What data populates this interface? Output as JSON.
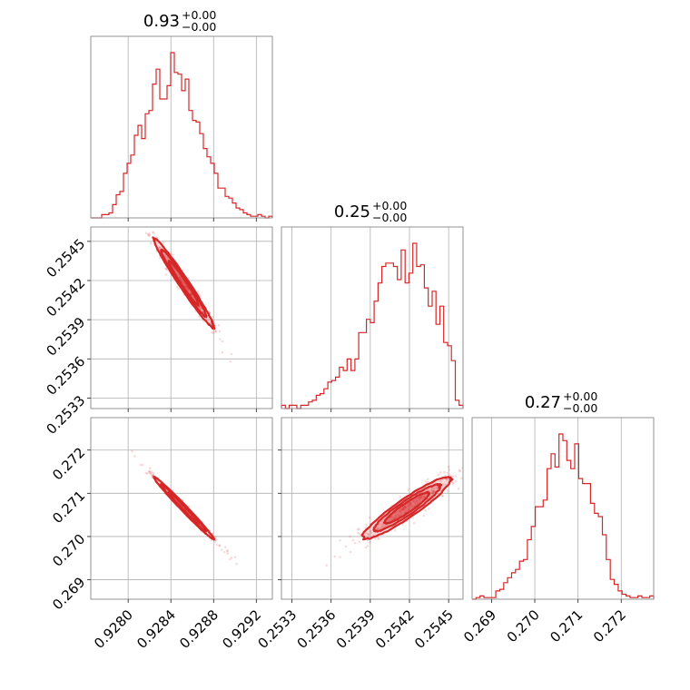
{
  "titles": [
    {
      "main": "0.93",
      "sup": "+0.00",
      "sub": "−0.00"
    },
    {
      "main": "0.25",
      "sup": "+0.00",
      "sub": "−0.00"
    },
    {
      "main": "0.27",
      "sup": "+0.00",
      "sub": "−0.00"
    }
  ],
  "colors": {
    "series": "#d62728",
    "grid": "#b0b0b0",
    "frame": "#888888"
  },
  "chart_data": {
    "type": "corner",
    "grid": true,
    "parameters": [
      {
        "range": [
          0.92765,
          0.92935
        ],
        "ticks": [
          0.928,
          0.9284,
          0.9288,
          0.9292
        ],
        "tick_labels": [
          "0.9280",
          "0.9284",
          "0.9288",
          "0.9292"
        ],
        "mean": 0.92852,
        "std": 0.00014,
        "hist_density": [
          0,
          0,
          0,
          0.02,
          0.02,
          0.03,
          0.08,
          0.14,
          0.16,
          0.27,
          0.33,
          0.38,
          0.5,
          0.56,
          0.48,
          0.63,
          0.65,
          0.81,
          0.9,
          0.72,
          0.72,
          0.8,
          1.0,
          0.88,
          0.87,
          0.77,
          0.84,
          0.65,
          0.59,
          0.58,
          0.51,
          0.42,
          0.37,
          0.33,
          0.27,
          0.18,
          0.18,
          0.13,
          0.12,
          0.09,
          0.06,
          0.05,
          0.03,
          0.02,
          0.01,
          0.01,
          0.02,
          0.01,
          0,
          0.01
        ]
      },
      {
        "range": [
          0.25322,
          0.25461
        ],
        "ticks": [
          0.2533,
          0.2536,
          0.2539,
          0.2542,
          0.2545
        ],
        "tick_labels": [
          "0.2533",
          "0.2536",
          "0.2539",
          "0.2542",
          "0.2545"
        ],
        "mean": 0.25418,
        "std": 0.00017,
        "hist_density": [
          0.02,
          0,
          0.02,
          0.02,
          0,
          0.02,
          0.02,
          0.04,
          0.05,
          0.08,
          0.09,
          0.12,
          0.16,
          0.17,
          0.19,
          0.25,
          0.23,
          0.3,
          0.23,
          0.3,
          0.46,
          0.46,
          0.54,
          0.52,
          0.65,
          0.76,
          0.86,
          0.88,
          0.88,
          0.86,
          0.78,
          0.96,
          0.76,
          0.82,
          1.0,
          0.86,
          0.87,
          0.73,
          0.62,
          0.71,
          0.51,
          0.62,
          0.4,
          0.38,
          0.29,
          0.05,
          0.02
        ]
      },
      {
        "range": [
          0.26855,
          0.27275
        ],
        "ticks": [
          0.269,
          0.27,
          0.271,
          0.272
        ],
        "tick_labels": [
          "0.269",
          "0.270",
          "0.271",
          "0.272"
        ],
        "mean": 0.27066,
        "std": 0.00036,
        "hist_density": [
          0,
          0.01,
          0.02,
          0.01,
          0.01,
          0.01,
          0.05,
          0.06,
          0.1,
          0.13,
          0.16,
          0.18,
          0.23,
          0.24,
          0.36,
          0.44,
          0.56,
          0.56,
          0.6,
          0.79,
          0.88,
          0.8,
          1.0,
          0.96,
          0.84,
          0.79,
          0.94,
          0.73,
          0.7,
          0.7,
          0.58,
          0.52,
          0.5,
          0.39,
          0.24,
          0.12,
          0.09,
          0.05,
          0.03,
          0.02,
          0.01,
          0.01,
          0.02,
          0.01,
          0.01,
          0.02
        ]
      }
    ],
    "correlations": {
      "1_0": -0.98,
      "2_0": -0.99,
      "2_1": 0.93
    }
  }
}
